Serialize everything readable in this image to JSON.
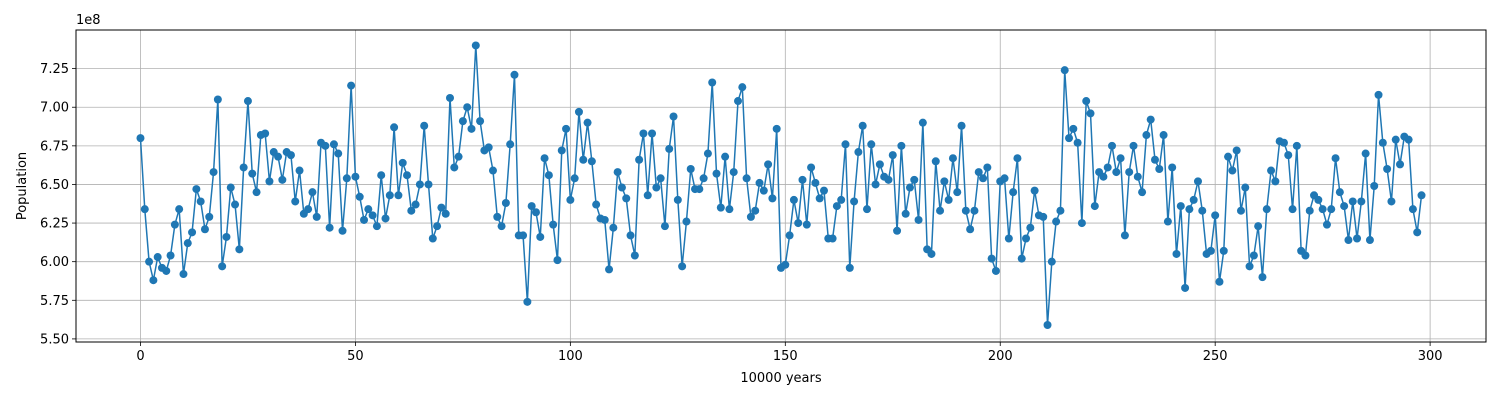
{
  "chart_data": {
    "type": "line",
    "title": "",
    "xlabel": "10000 years",
    "ylabel": "Population",
    "y_offset_text": "1e8",
    "y_multiplier": 100000000,
    "xlim": [
      -15,
      313
    ],
    "ylim": [
      5.48,
      7.5
    ],
    "x_ticks": [
      0,
      50,
      100,
      150,
      200,
      250,
      300
    ],
    "x_tick_labels": [
      "0",
      "50",
      "100",
      "150",
      "200",
      "250",
      "300"
    ],
    "y_ticks": [
      5.5,
      5.75,
      6.0,
      6.25,
      6.5,
      6.75,
      7.0,
      7.25
    ],
    "y_tick_labels": [
      "5.50",
      "5.75",
      "6.00",
      "6.25",
      "6.50",
      "6.75",
      "7.00",
      "7.25"
    ],
    "grid": true,
    "marker": "circle",
    "color": "#1f77b4",
    "series": [
      {
        "x_start": 0,
        "x_step": 1,
        "values": [
          6.8,
          6.34,
          6.0,
          5.88,
          6.03,
          5.96,
          5.94,
          6.04,
          6.24,
          6.34,
          5.92,
          6.12,
          6.19,
          6.47,
          6.39,
          6.21,
          6.29,
          6.58,
          7.05,
          5.97,
          6.16,
          6.48,
          6.37,
          6.08,
          6.61,
          7.04,
          6.57,
          6.45,
          6.82,
          6.83,
          6.52,
          6.71,
          6.68,
          6.53,
          6.71,
          6.69,
          6.39,
          6.59,
          6.31,
          6.34,
          6.45,
          6.29,
          6.77,
          6.75,
          6.22,
          6.76,
          6.7,
          6.2,
          6.54,
          7.14,
          6.55,
          6.42,
          6.27,
          6.34,
          6.3,
          6.23,
          6.56,
          6.28,
          6.43,
          6.87,
          6.43,
          6.64,
          6.56,
          6.33,
          6.37,
          6.5,
          6.88,
          6.5,
          6.15,
          6.23,
          6.35,
          6.31,
          7.06,
          6.61,
          6.68,
          6.91,
          7.0,
          6.86,
          7.4,
          6.91,
          6.72,
          6.74,
          6.59,
          6.29,
          6.23,
          6.38,
          6.76,
          7.21,
          6.17,
          6.17,
          5.74,
          6.36,
          6.32,
          6.16,
          6.67,
          6.56,
          6.24,
          6.01,
          6.72,
          6.86,
          6.4,
          6.54,
          6.97,
          6.66,
          6.9,
          6.65,
          6.37,
          6.28,
          6.27,
          5.95,
          6.22,
          6.58,
          6.48,
          6.41,
          6.17,
          6.04,
          6.66,
          6.83,
          6.43,
          6.83,
          6.48,
          6.54,
          6.23,
          6.73,
          6.94,
          6.4,
          5.97,
          6.26,
          6.6,
          6.47,
          6.47,
          6.54,
          6.7,
          7.16,
          6.57,
          6.35,
          6.68,
          6.34,
          6.58,
          7.04,
          7.13,
          6.54,
          6.29,
          6.33,
          6.51,
          6.46,
          6.63,
          6.41,
          6.86,
          5.96,
          5.98,
          6.17,
          6.4,
          6.25,
          6.53,
          6.24,
          6.61,
          6.51,
          6.41,
          6.46,
          6.15,
          6.15,
          6.36,
          6.4,
          6.76,
          5.96,
          6.39,
          6.71,
          6.88,
          6.34,
          6.76,
          6.5,
          6.63,
          6.55,
          6.53,
          6.69,
          6.2,
          6.75,
          6.31,
          6.48,
          6.53,
          6.27,
          6.9,
          6.08,
          6.05,
          6.65,
          6.33,
          6.52,
          6.4,
          6.67,
          6.45,
          6.88,
          6.33,
          6.21,
          6.33,
          6.58,
          6.54,
          6.61,
          6.02,
          5.94,
          6.52,
          6.54,
          6.15,
          6.45,
          6.67,
          6.02,
          6.15,
          6.22,
          6.46,
          6.3,
          6.29,
          5.59,
          6.0,
          6.26,
          6.33,
          7.24,
          6.8,
          6.86,
          6.77,
          6.25,
          7.04,
          6.96,
          6.36,
          6.58,
          6.55,
          6.61,
          6.75,
          6.58,
          6.67,
          6.17,
          6.58,
          6.75,
          6.55,
          6.45,
          6.82,
          6.92,
          6.66,
          6.6,
          6.82,
          6.26,
          6.61,
          6.05,
          6.36,
          5.83,
          6.34,
          6.4,
          6.52,
          6.33,
          6.05,
          6.07,
          6.3,
          5.87,
          6.07,
          6.68,
          6.59,
          6.72,
          6.33,
          6.48,
          5.97,
          6.04,
          6.23,
          5.9,
          6.34,
          6.59,
          6.52,
          6.78,
          6.77,
          6.69,
          6.34,
          6.75,
          6.07,
          6.04,
          6.33,
          6.43,
          6.4,
          6.34,
          6.24,
          6.34,
          6.67,
          6.45,
          6.36,
          6.14,
          6.39,
          6.15,
          6.39,
          6.7,
          6.14,
          6.49,
          7.08,
          6.77,
          6.6,
          6.39,
          6.79,
          6.63,
          6.81,
          6.79,
          6.34,
          6.19,
          6.43
        ]
      }
    ]
  }
}
